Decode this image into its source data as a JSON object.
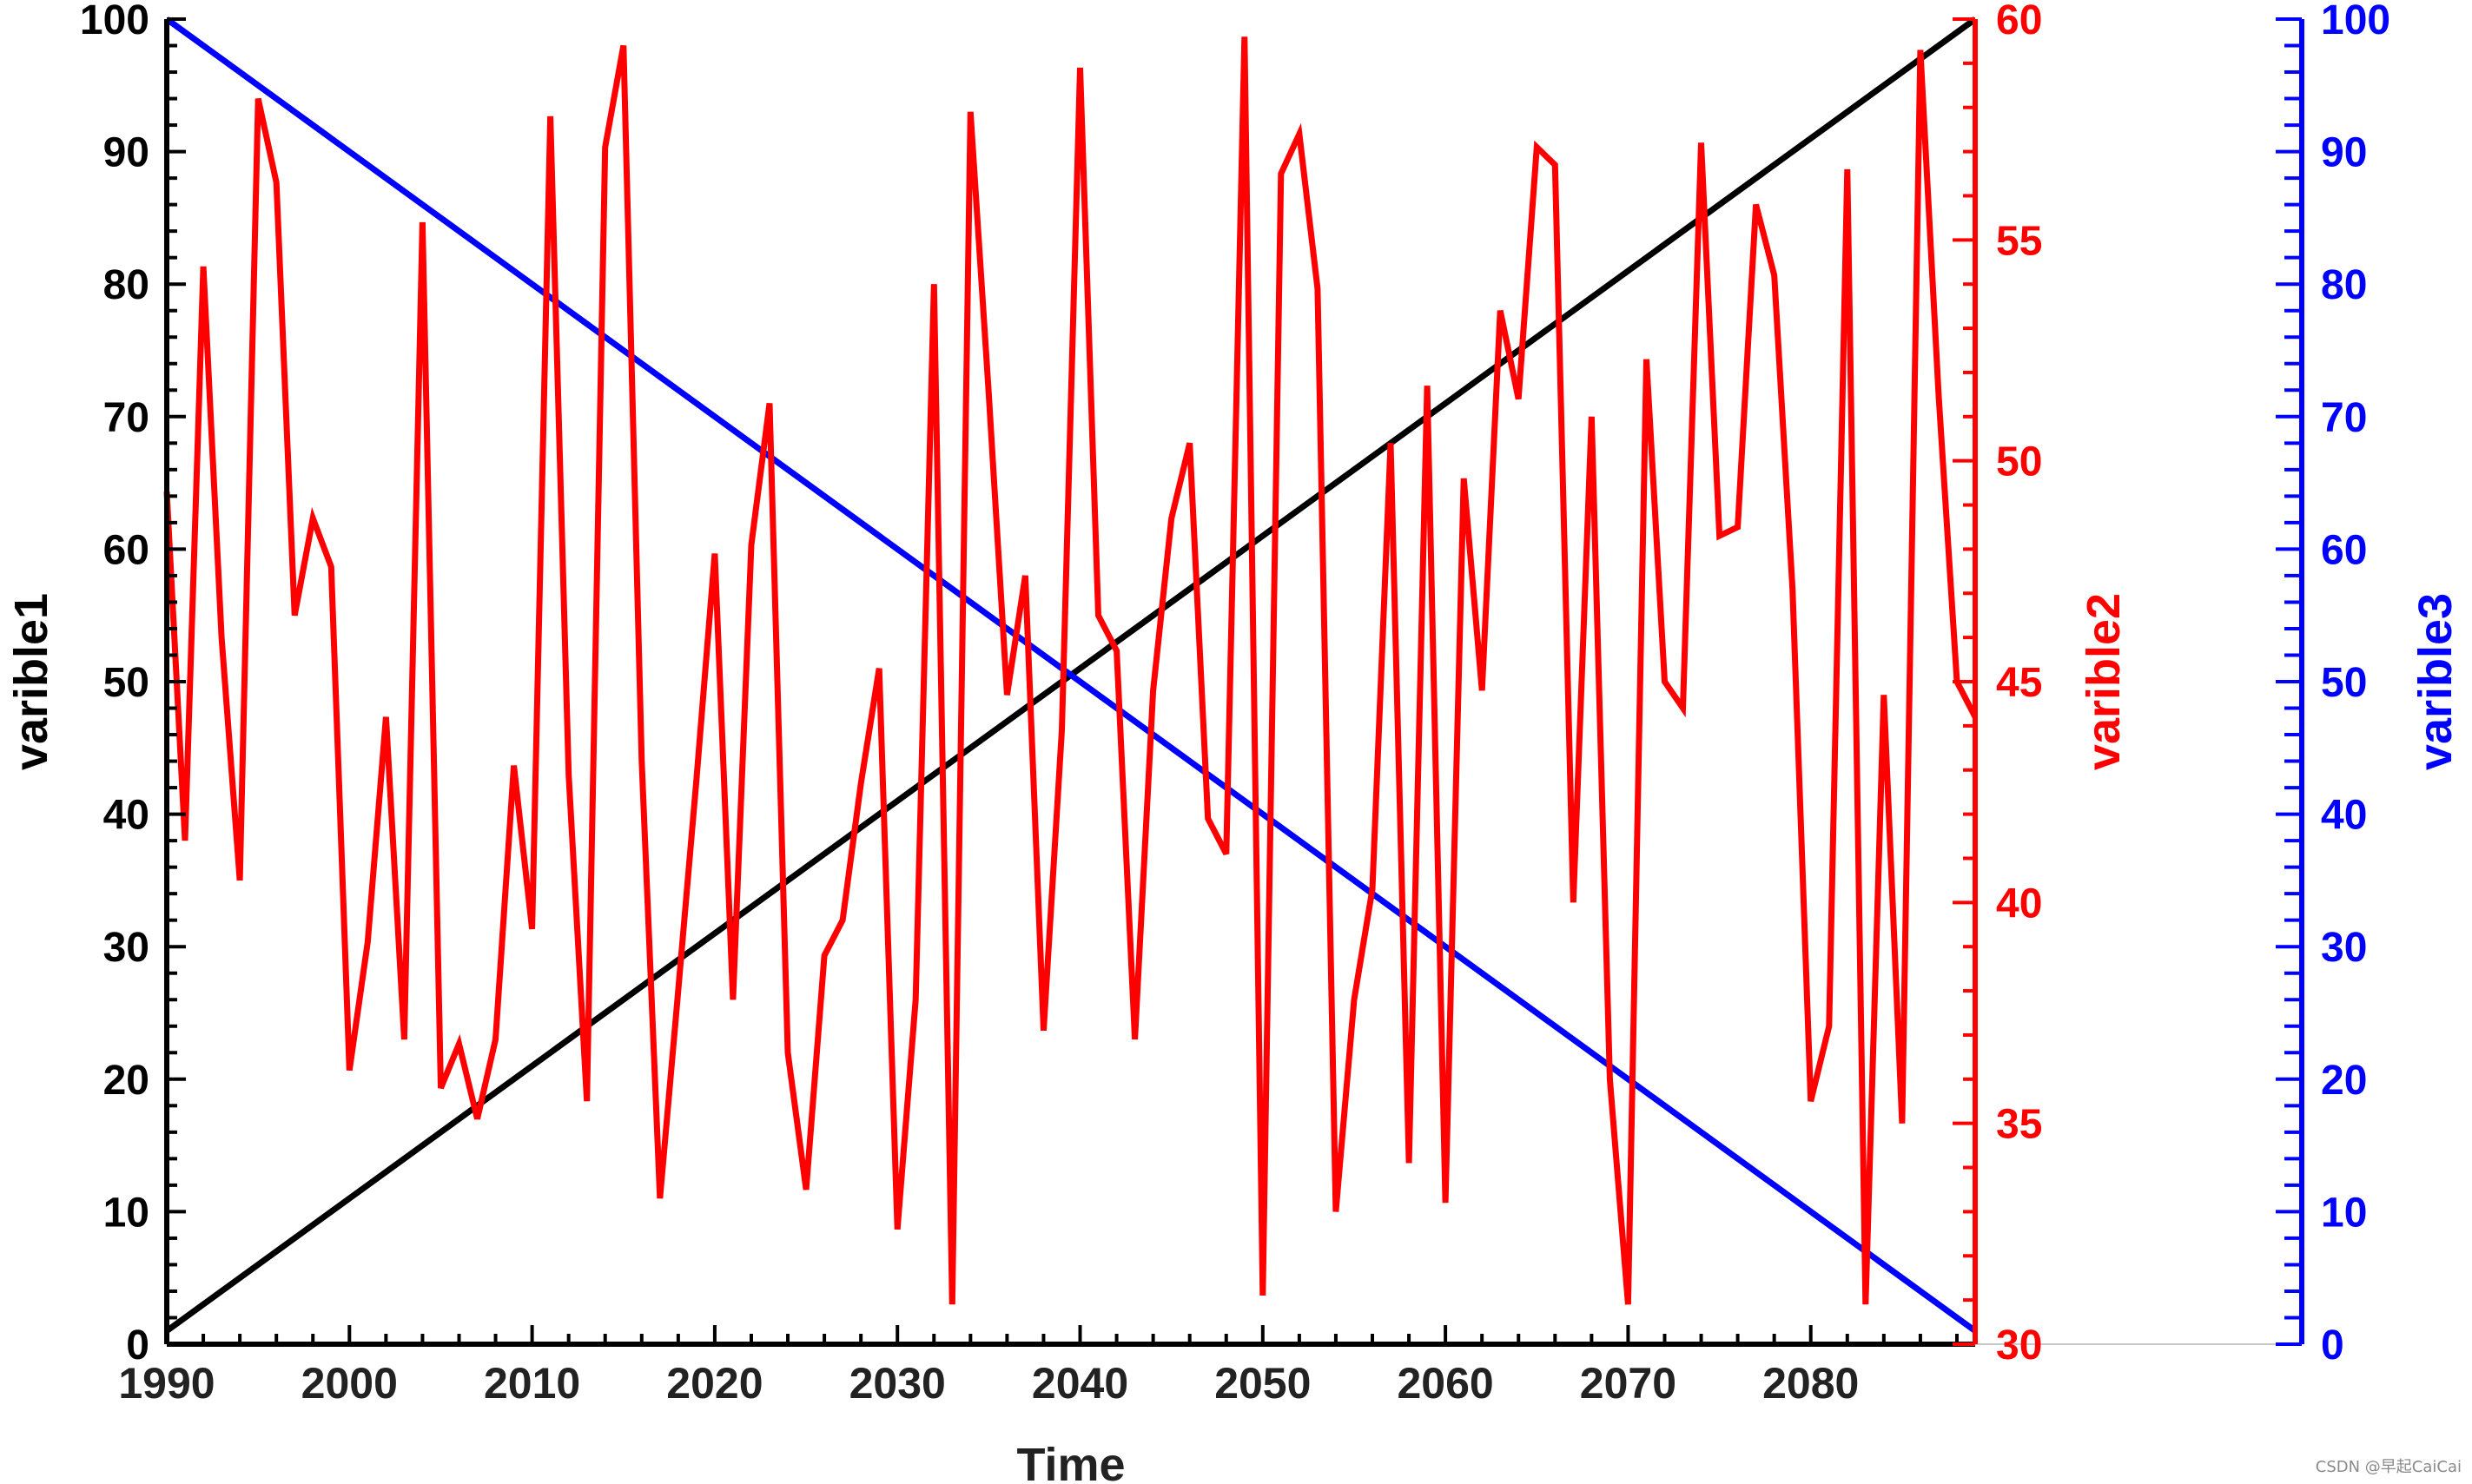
{
  "chart_data": {
    "type": "line",
    "xlabel": "Time",
    "xlim": [
      1990,
      2089
    ],
    "xticks": [
      1990,
      2000,
      2010,
      2020,
      2030,
      2040,
      2050,
      2060,
      2070,
      2080
    ],
    "axes": [
      {
        "id": "y1",
        "label": "varible1",
        "ylim": [
          0,
          100
        ],
        "ticks": [
          0,
          10,
          20,
          30,
          40,
          50,
          60,
          70,
          80,
          90,
          100
        ],
        "color": "#000000",
        "side": "left"
      },
      {
        "id": "y2",
        "label": "varible2",
        "ylim": [
          30,
          60
        ],
        "ticks": [
          30,
          35,
          40,
          45,
          50,
          55,
          60
        ],
        "color": "#ff0000",
        "side": "right"
      },
      {
        "id": "y3",
        "label": "varible3",
        "ylim": [
          0,
          100
        ],
        "ticks": [
          0,
          10,
          20,
          30,
          40,
          50,
          60,
          70,
          80,
          90,
          100
        ],
        "color": "#0000ff",
        "side": "right-offset"
      }
    ],
    "series": [
      {
        "axis": "y1",
        "color": "#000000",
        "x": [
          1990,
          2089
        ],
        "values": [
          1,
          100
        ]
      },
      {
        "axis": "y3",
        "color": "#0000ff",
        "x": [
          1990,
          2089
        ],
        "values": [
          100,
          1
        ]
      },
      {
        "axis": "y2",
        "color": "#ff0000",
        "x": [
          1990,
          1991,
          1992,
          1993,
          1994,
          1995,
          1996,
          1997,
          1998,
          1999,
          2000,
          2001,
          2002,
          2003,
          2004,
          2005,
          2006,
          2007,
          2008,
          2009,
          2010,
          2011,
          2012,
          2013,
          2014,
          2015,
          2016,
          2017,
          2018,
          2019,
          2020,
          2021,
          2022,
          2023,
          2024,
          2025,
          2026,
          2027,
          2028,
          2029,
          2030,
          2031,
          2032,
          2033,
          2034,
          2035,
          2036,
          2037,
          2038,
          2039,
          2040,
          2041,
          2042,
          2043,
          2044,
          2045,
          2046,
          2047,
          2048,
          2049,
          2050,
          2051,
          2052,
          2053,
          2054,
          2055,
          2056,
          2057,
          2058,
          2059,
          2060,
          2061,
          2062,
          2063,
          2064,
          2065,
          2066,
          2067,
          2068,
          2069,
          2070,
          2071,
          2072,
          2073,
          2074,
          2075,
          2076,
          2077,
          2078,
          2079,
          2080,
          2081,
          2082,
          2083,
          2084,
          2085,
          2086,
          2087,
          2088,
          2089
        ],
        "values": [
          49.3,
          41.4,
          54.4,
          46.0,
          40.5,
          58.2,
          56.3,
          46.5,
          48.7,
          47.6,
          36.2,
          39.1,
          44.2,
          36.9,
          55.4,
          35.8,
          36.8,
          35.1,
          36.9,
          43.1,
          39.4,
          57.8,
          42.9,
          35.5,
          57.1,
          59.4,
          43.2,
          33.3,
          38.0,
          42.8,
          47.9,
          37.8,
          48.1,
          51.3,
          36.6,
          33.5,
          38.8,
          39.6,
          42.7,
          45.3,
          32.6,
          37.8,
          54.0,
          30.9,
          57.9,
          51.5,
          44.7,
          47.4,
          37.1,
          43.9,
          58.9,
          46.5,
          45.7,
          36.9,
          44.8,
          48.7,
          50.4,
          41.9,
          41.1,
          59.6,
          31.1,
          56.5,
          57.4,
          53.9,
          33.0,
          37.8,
          40.3,
          50.4,
          34.1,
          51.7,
          33.2,
          49.6,
          44.8,
          53.4,
          51.4,
          57.1,
          56.7,
          40.0,
          51.0,
          36.0,
          30.9,
          52.3,
          45.0,
          44.4,
          57.2,
          48.3,
          48.5,
          55.8,
          54.2,
          47.1,
          35.5,
          37.2,
          56.6,
          30.9,
          44.7,
          35.0,
          59.3,
          51.5,
          45.0,
          44.2
        ]
      }
    ]
  },
  "watermark": "CSDN @早起CaiCai"
}
